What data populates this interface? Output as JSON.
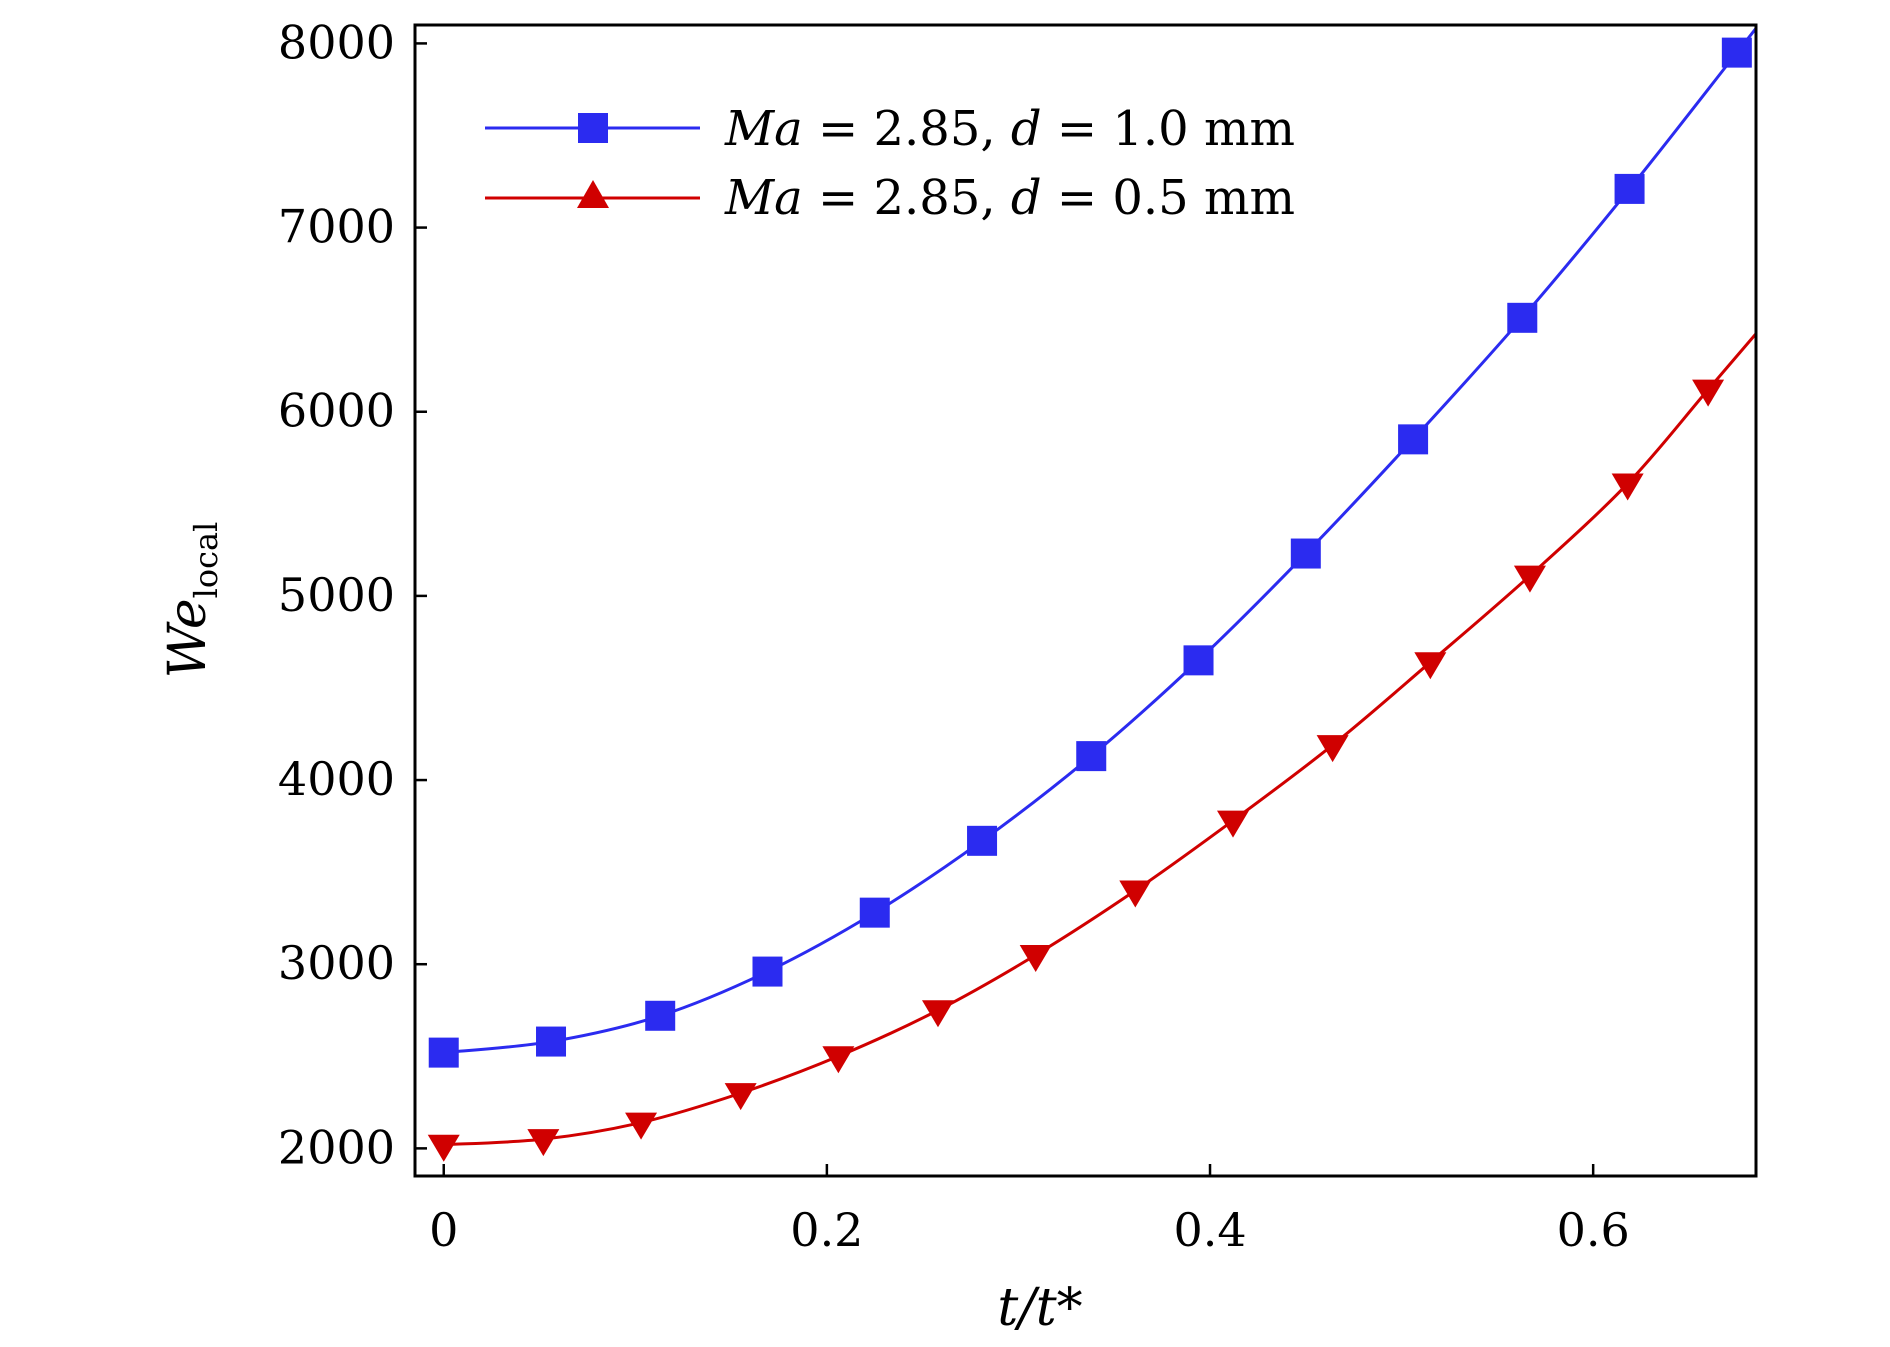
{
  "chart_data": {
    "type": "line",
    "title": "",
    "xlabel": "t/t*",
    "ylabel": "We_local",
    "xlim": [
      -0.015,
      0.685
    ],
    "ylim": [
      1850,
      8100
    ],
    "x_ticks": [
      0,
      0.2,
      0.4,
      0.6
    ],
    "x_tick_labels": [
      "0",
      "0.2",
      "0.4",
      "0.6"
    ],
    "y_ticks": [
      2000,
      3000,
      4000,
      5000,
      6000,
      7000,
      8000
    ],
    "y_tick_labels": [
      "2000",
      "3000",
      "4000",
      "5000",
      "6000",
      "7000",
      "8000"
    ],
    "legend_position": "top-left",
    "series": [
      {
        "name": "Ma = 2.85, d = 1.0 mm",
        "label_parts": {
          "ma": "Ma",
          "eq1": " = 2.85, ",
          "d": "d",
          "eq2": " = 1.0 mm"
        },
        "color": "#2b2bf0",
        "marker": "square",
        "x": [
          0,
          0.056,
          0.113,
          0.169,
          0.225,
          0.281,
          0.338,
          0.394,
          0.45,
          0.506,
          0.563,
          0.619,
          0.675
        ],
        "y": [
          2520,
          2580,
          2720,
          2960,
          3280,
          3670,
          4130,
          4650,
          5230,
          5850,
          6510,
          7210,
          7950
        ]
      },
      {
        "name": "Ma = 2.85, d = 0.5 mm",
        "label_parts": {
          "ma": "Ma",
          "eq1": " = 2.85, ",
          "d": "d",
          "eq2": " = 0.5 mm"
        },
        "color": "#d00000",
        "marker": "triangle",
        "x": [
          0,
          0.052,
          0.103,
          0.155,
          0.206,
          0.258,
          0.309,
          0.361,
          0.412,
          0.464,
          0.515,
          0.567,
          0.618
        ],
        "y": [
          2020,
          2050,
          2140,
          2300,
          2500,
          2750,
          3050,
          3400,
          3780,
          4190,
          4640,
          5110,
          5610
        ]
      }
    ],
    "extra_points": [
      {
        "series": 1,
        "x": 0.66,
        "y": 6120
      }
    ]
  }
}
